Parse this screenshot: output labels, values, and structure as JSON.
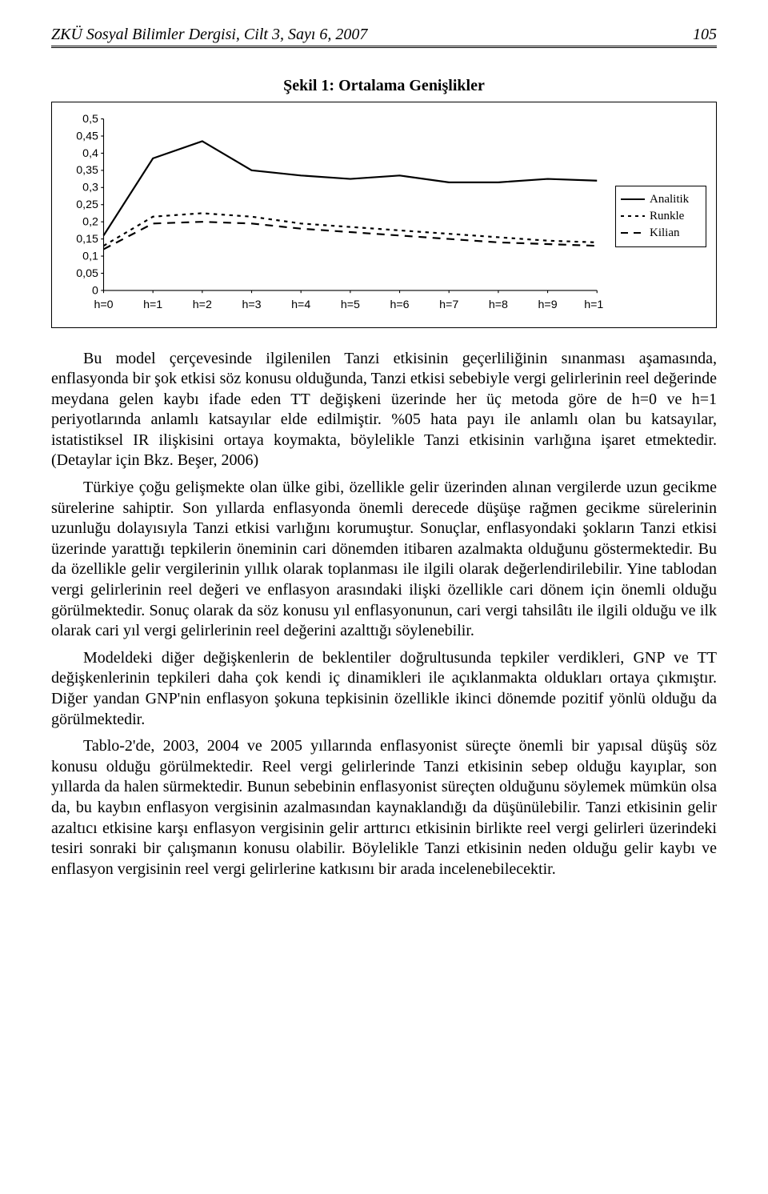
{
  "header": {
    "journal": "ZKÜ Sosyal Bilimler Dergisi, Cilt 3, Sayı 6, 2007",
    "page_number": "105"
  },
  "figure": {
    "caption": "Şekil 1: Ortalama Genişlikler",
    "type": "line",
    "background_color": "#ffffff",
    "border_color": "#000000",
    "x_categories": [
      "h=0",
      "h=1",
      "h=2",
      "h=3",
      "h=4",
      "h=5",
      "h=6",
      "h=7",
      "h=8",
      "h=9",
      "h=10"
    ],
    "ylim": [
      0,
      0.5
    ],
    "ytick_step": 0.05,
    "ytick_labels": [
      "0",
      "0,05",
      "0,1",
      "0,15",
      "0,2",
      "0,25",
      "0,3",
      "0,35",
      "0,4",
      "0,45",
      "0,5"
    ],
    "axis_fontsize": 13,
    "series": [
      {
        "name": "Analitik",
        "color": "#000000",
        "dash": "solid",
        "width": 2,
        "values": [
          0.16,
          0.385,
          0.435,
          0.35,
          0.335,
          0.325,
          0.335,
          0.315,
          0.315,
          0.325,
          0.32
        ]
      },
      {
        "name": "Runkle",
        "color": "#000000",
        "dash": "dot",
        "width": 2,
        "values": [
          0.13,
          0.215,
          0.225,
          0.215,
          0.195,
          0.185,
          0.175,
          0.165,
          0.155,
          0.145,
          0.14
        ]
      },
      {
        "name": "Kilian",
        "color": "#000000",
        "dash": "dash",
        "width": 2,
        "values": [
          0.12,
          0.195,
          0.2,
          0.195,
          0.18,
          0.17,
          0.16,
          0.15,
          0.14,
          0.135,
          0.13
        ]
      }
    ]
  },
  "body": {
    "p1": "Bu model çerçevesinde ilgilenilen Tanzi etkisinin geçerliliğinin sınanması aşamasında, enflasyonda bir şok etkisi söz konusu olduğunda, Tanzi etkisi sebebiyle vergi gelirlerinin reel değerinde meydana gelen kaybı ifade eden TT değişkeni üzerinde her üç metoda göre de h=0 ve h=1 periyotlarında anlamlı katsayılar elde edilmiştir. %05 hata payı ile anlamlı olan bu katsayılar, istatistiksel IR ilişkisini ortaya koymakta, böylelikle Tanzi etkisinin varlığına işaret etmektedir. (Detaylar için Bkz. Beşer, 2006)",
    "p2": "Türkiye çoğu gelişmekte olan ülke gibi, özellikle gelir üzerinden alınan vergilerde uzun gecikme sürelerine sahiptir. Son yıllarda enflasyonda önemli derecede düşüşe rağmen gecikme sürelerinin uzunluğu dolayısıyla Tanzi etkisi varlığını korumuştur. Sonuçlar, enflasyondaki şokların Tanzi etkisi üzerinde yarattığı tepkilerin öneminin cari dönemden itibaren azalmakta olduğunu göstermektedir. Bu da özellikle gelir vergilerinin yıllık olarak toplanması ile ilgili olarak değerlendirilebilir. Yine tablodan vergi gelirlerinin reel değeri ve enflasyon arasındaki ilişki özellikle cari dönem için önemli olduğu görülmektedir. Sonuç olarak da söz konusu yıl enflasyonunun, cari vergi tahsilâtı ile ilgili olduğu ve ilk olarak cari yıl vergi gelirlerinin reel değerini azalttığı söylenebilir.",
    "p3": "Modeldeki diğer değişkenlerin de beklentiler doğrultusunda tepkiler verdikleri, GNP ve TT değişkenlerinin tepkileri daha çok kendi iç dinamikleri ile açıklanmakta oldukları ortaya çıkmıştır. Diğer yandan GNP'nin enflasyon şokuna tepkisinin özellikle ikinci dönemde pozitif yönlü olduğu da görülmektedir.",
    "p4": "Tablo-2'de, 2003, 2004 ve 2005 yıllarında enflasyonist süreçte önemli bir yapısal düşüş söz konusu olduğu görülmektedir. Reel vergi gelirlerinde Tanzi etkisinin sebep olduğu kayıplar, son yıllarda da halen sürmektedir. Bunun sebebinin enflasyonist süreçten olduğunu söylemek mümkün olsa da, bu kaybın enflasyon vergisinin azalmasından kaynaklandığı da düşünülebilir. Tanzi etkisinin gelir azaltıcı etkisine karşı enflasyon vergisinin gelir arttırıcı etkisinin birlikte reel vergi gelirleri üzerindeki tesiri sonraki bir çalışmanın konusu olabilir. Böylelikle Tanzi etkisinin neden olduğu gelir kaybı ve enflasyon vergisinin reel vergi gelirlerine katkısını bir arada incelenebilecektir."
  }
}
